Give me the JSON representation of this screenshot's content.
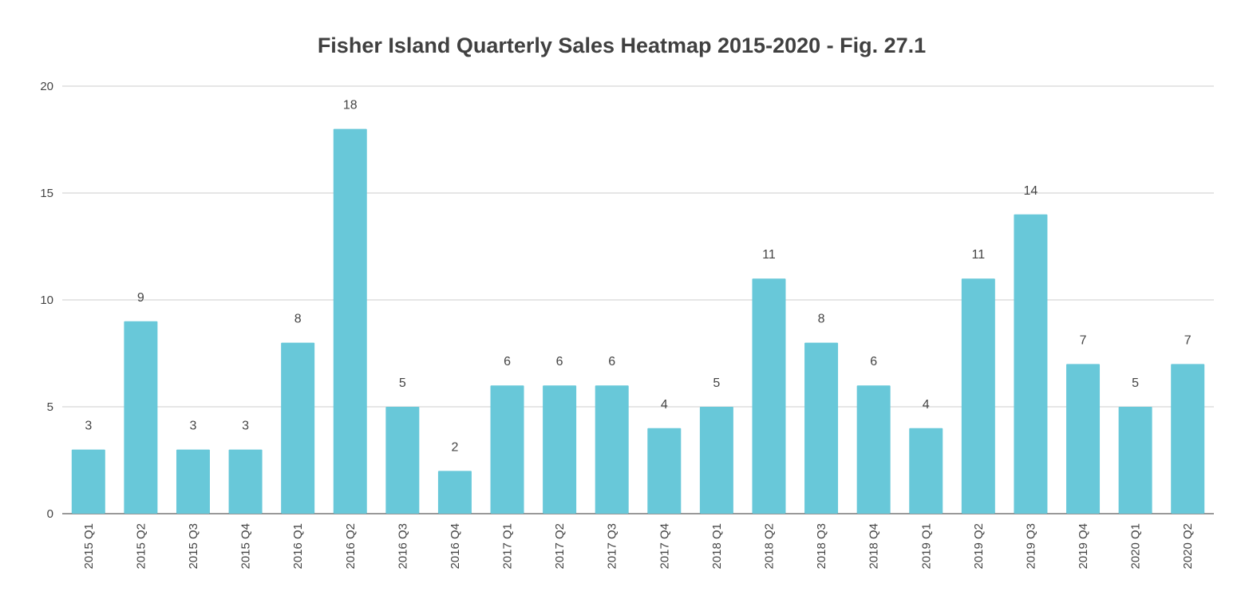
{
  "chart_data": {
    "type": "bar",
    "title": "Fisher Island Quarterly Sales Heatmap 2015-2020 - Fig. 27.1",
    "xlabel": "",
    "ylabel": "",
    "ylim": [
      0,
      20
    ],
    "yticks": [
      0,
      5,
      10,
      15,
      20
    ],
    "grid": true,
    "legend": "none",
    "bar_color": "#68c8d9",
    "data_labels": true,
    "categories": [
      "2015 Q1",
      "2015 Q2",
      "2015 Q3",
      "2015 Q4",
      "2016 Q1",
      "2016 Q2",
      "2016 Q3",
      "2016 Q4",
      "2017 Q1",
      "2017 Q2",
      "2017 Q3",
      "2017 Q4",
      "2018 Q1",
      "2018 Q2",
      "2018 Q3",
      "2018 Q4",
      "2019 Q1",
      "2019 Q2",
      "2019 Q3",
      "2019 Q4",
      "2020 Q1",
      "2020 Q2"
    ],
    "values": [
      3,
      9,
      3,
      3,
      8,
      18,
      5,
      2,
      6,
      6,
      6,
      4,
      5,
      11,
      8,
      6,
      4,
      11,
      14,
      7,
      5,
      7
    ]
  }
}
